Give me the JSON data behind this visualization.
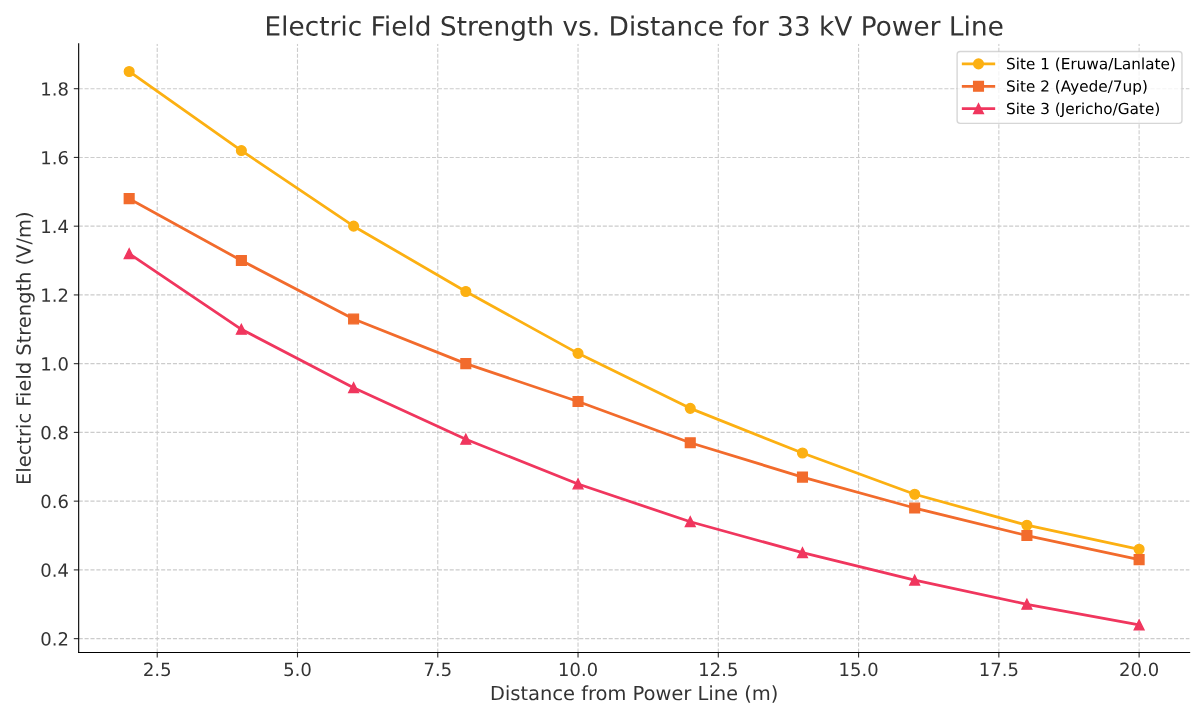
{
  "chart_data": {
    "type": "line",
    "title": "Electric Field Strength vs. Distance for 33 kV Power Line",
    "xlabel": "Distance from Power Line (m)",
    "ylabel": "Electric Field Strength (V/m)",
    "x": [
      2,
      4,
      6,
      8,
      10,
      12,
      14,
      16,
      18,
      20
    ],
    "series": [
      {
        "name": "Site 1 (Eruwa/Lanlate)",
        "color": "#fcb012",
        "marker": "circle",
        "values": [
          1.85,
          1.62,
          1.4,
          1.21,
          1.03,
          0.87,
          0.74,
          0.62,
          0.53,
          0.46
        ]
      },
      {
        "name": "Site 2 (Ayede/7up)",
        "color": "#f26b2c",
        "marker": "square",
        "values": [
          1.48,
          1.3,
          1.13,
          1.0,
          0.89,
          0.77,
          0.67,
          0.58,
          0.5,
          0.43
        ]
      },
      {
        "name": "Site 3 (Jericho/Gate)",
        "color": "#f0365e",
        "marker": "triangle",
        "values": [
          1.32,
          1.1,
          0.93,
          0.78,
          0.65,
          0.54,
          0.45,
          0.37,
          0.3,
          0.24
        ]
      }
    ],
    "xlim": [
      1.1,
      20.9
    ],
    "ylim": [
      0.1595,
      1.9305
    ],
    "xticks": [
      {
        "value": 2.5,
        "label": "2.5"
      },
      {
        "value": 5,
        "label": "5.0"
      },
      {
        "value": 7.5,
        "label": "7.5"
      },
      {
        "value": 10,
        "label": "10.0"
      },
      {
        "value": 12.5,
        "label": "12.5"
      },
      {
        "value": 15,
        "label": "15.0"
      },
      {
        "value": 17.5,
        "label": "17.5"
      },
      {
        "value": 20,
        "label": "20.0"
      }
    ],
    "yticks": [
      {
        "value": 0.2,
        "label": "0.2"
      },
      {
        "value": 0.4,
        "label": "0.4"
      },
      {
        "value": 0.6,
        "label": "0.6"
      },
      {
        "value": 0.8,
        "label": "0.8"
      },
      {
        "value": 1.0,
        "label": "1.0"
      },
      {
        "value": 1.2,
        "label": "1.2"
      },
      {
        "value": 1.4,
        "label": "1.4"
      },
      {
        "value": 1.6,
        "label": "1.6"
      },
      {
        "value": 1.8,
        "label": "1.8"
      }
    ],
    "grid": true,
    "legend": "top right",
    "line_style": "solid"
  }
}
